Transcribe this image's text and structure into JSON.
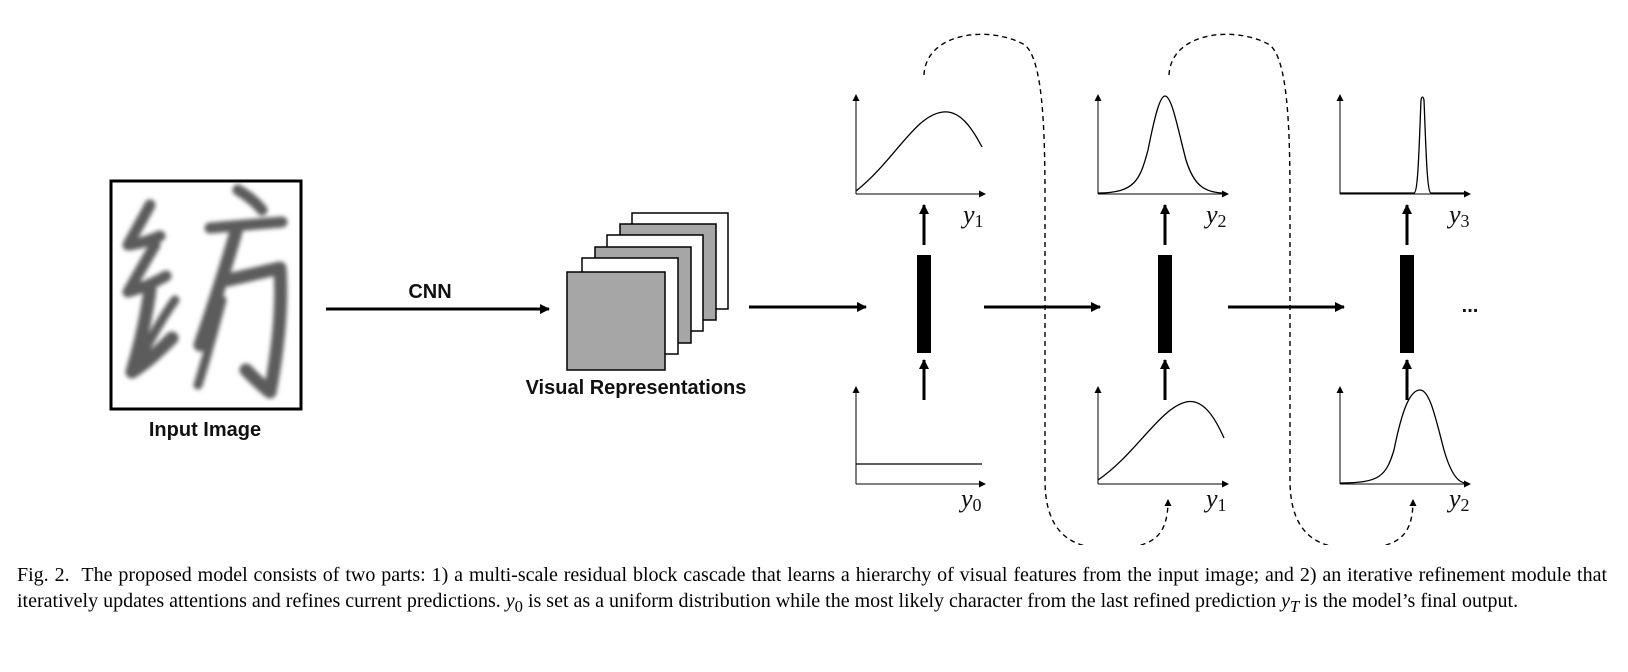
{
  "labels": {
    "input_image": "Input Image",
    "cnn": "CNN",
    "visual_representations": "Visual Representations",
    "ellipsis": "..."
  },
  "variables": {
    "top": [
      {
        "base": "y",
        "sub": "1"
      },
      {
        "base": "y",
        "sub": "2"
      },
      {
        "base": "y",
        "sub": "3"
      }
    ],
    "bottom": [
      {
        "base": "y",
        "sub": "0"
      },
      {
        "base": "y",
        "sub": "1"
      },
      {
        "base": "y",
        "sub": "2"
      }
    ]
  },
  "caption": {
    "fig_label": "Fig. 2.",
    "part1": "The proposed model consists of two parts: 1) a multi-scale residual block cascade that learns a hierarchy of visual features from the input image; and 2) an iterative refinement module that iteratively updates attentions and refines current predictions.",
    "y0_base": "y",
    "y0_sub": "0",
    "part2": "is set as a uniform distribution while the most likely character from the last refined prediction",
    "yT_base": "y",
    "yT_sub": "T",
    "part3": "is the model’s final output."
  },
  "colors": {
    "ink": "#000000",
    "map_fill": "#a6a6a6",
    "map_back": "#ffffff"
  }
}
